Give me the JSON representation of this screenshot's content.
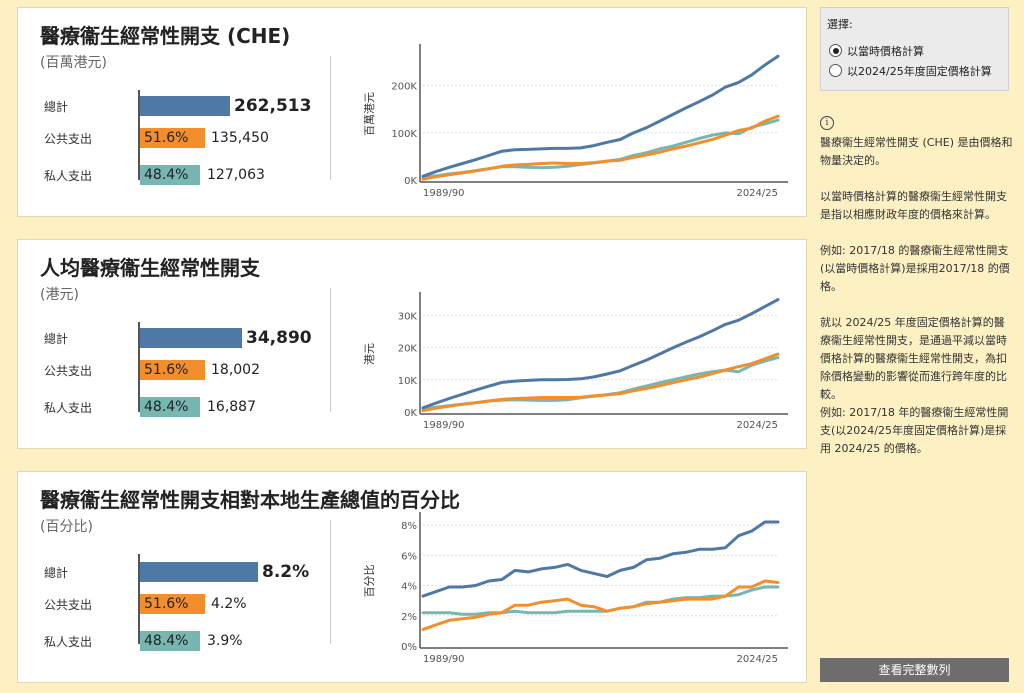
{
  "colors": {
    "total": "#4e79a7",
    "public": "#f28e2b",
    "private": "#76b7b2",
    "background": "#fdf1c4"
  },
  "selector": {
    "title": "選擇:",
    "options": [
      "以當時價格計算",
      "以2024/25年度固定價格計算"
    ],
    "selected": "以當時價格計算"
  },
  "notes": {
    "p1": "醫療衞生經常性開支 (CHE) 是由價格和物量決定的。",
    "p2": "以當時價格計算的醫療衞生經常性開支是指以相應財政年度的價格來計算。",
    "p2b": "例如: 2017/18 的醫療衞生經常性開支(以當時價格計算)是採用2017/18 的價格。",
    "p3": "就以 2024/25 年度固定價格計算的醫療衞生經常性開支，是通過平減以當時價格計算的醫療衞生經常性開支，為扣除價格變動的影響從而進行跨年度的比較。",
    "p3b": "例如: 2017/18 年的醫療衞生經常性開支(以2024/25年度固定價格計算)是採用 2024/25 的價格。"
  },
  "full_series_button": "查看完整數列",
  "bar_labels": {
    "total": "總計",
    "public": "公共支出",
    "private": "私人支出"
  },
  "panels": [
    {
      "title": "醫療衞生經常性開支 (CHE)",
      "unit": "(百萬港元)",
      "total": "262,513",
      "public_pct": "51.6%",
      "public": "135,450",
      "private_pct": "48.4%",
      "private": "127,063"
    },
    {
      "title": "人均醫療衞生經常性開支",
      "unit": "(港元)",
      "total": "34,890",
      "public_pct": "51.6%",
      "public": "18,002",
      "private_pct": "48.4%",
      "private": "16,887"
    },
    {
      "title": "醫療衞生經常性開支相對本地生產總值的百分比",
      "unit": "(百分比)",
      "total": "8.2%",
      "public_pct": "51.6%",
      "public": "4.2%",
      "private_pct": "48.4%",
      "private": "3.9%"
    }
  ],
  "chart_data": [
    {
      "type": "line",
      "ylabel": "百萬港元",
      "x_first": "1989/90",
      "x_last": "2024/25",
      "ylim": [
        0,
        280000
      ],
      "yticks": [
        0,
        100000,
        200000
      ],
      "ytick_labels": [
        "0K",
        "100K",
        "200K"
      ],
      "series": [
        {
          "key": "total",
          "values": [
            8000,
            18000,
            27000,
            35000,
            43000,
            52000,
            61000,
            64000,
            65000,
            66000,
            67000,
            67000,
            68000,
            73000,
            80000,
            86000,
            100000,
            111000,
            125000,
            139000,
            153000,
            166000,
            180000,
            197000,
            207000,
            223000,
            244000,
            262513
          ]
        },
        {
          "key": "public",
          "values": [
            2000,
            7000,
            11000,
            15000,
            19000,
            24000,
            29000,
            32000,
            33000,
            35000,
            36000,
            35000,
            35000,
            37000,
            40000,
            42000,
            48000,
            53000,
            59000,
            66000,
            72000,
            79000,
            86000,
            95000,
            105000,
            110000,
            125000,
            135450
          ]
        },
        {
          "key": "private",
          "values": [
            6000,
            9000,
            13000,
            16000,
            20000,
            24000,
            28000,
            28000,
            27000,
            26000,
            27000,
            29000,
            33000,
            36000,
            40000,
            44000,
            52000,
            58000,
            66000,
            72000,
            80000,
            88000,
            95000,
            100000,
            98000,
            112000,
            119000,
            127063
          ]
        }
      ]
    },
    {
      "type": "line",
      "ylabel": "港元",
      "x_first": "1989/90",
      "x_last": "2024/25",
      "ylim": [
        0,
        36000
      ],
      "yticks": [
        0,
        10000,
        20000,
        30000
      ],
      "ytick_labels": [
        "0K",
        "10K",
        "20K",
        "30K"
      ],
      "series": [
        {
          "key": "total",
          "values": [
            1300,
            2800,
            4200,
            5500,
            6800,
            8000,
            9200,
            9600,
            9800,
            10000,
            10000,
            10100,
            10300,
            10900,
            11800,
            12800,
            14500,
            16100,
            18000,
            19900,
            21700,
            23300,
            25200,
            27200,
            28500,
            30500,
            32700,
            34890
          ]
        },
        {
          "key": "public",
          "values": [
            400,
            1200,
            1800,
            2400,
            2900,
            3400,
            3900,
            4200,
            4300,
            4500,
            4500,
            4500,
            4600,
            5000,
            5300,
            5700,
            6600,
            7300,
            8200,
            9100,
            10000,
            10800,
            11900,
            13000,
            14100,
            15000,
            16500,
            18002
          ]
        },
        {
          "key": "private",
          "values": [
            1000,
            1500,
            2000,
            2400,
            2900,
            3400,
            3700,
            3800,
            3700,
            3600,
            3600,
            3800,
            4400,
            4900,
            5400,
            6000,
            7100,
            8100,
            9100,
            10000,
            10900,
            11800,
            12500,
            13000,
            12500,
            14500,
            15800,
            16887
          ]
        }
      ]
    },
    {
      "type": "line",
      "ylabel": "百分比",
      "x_first": "1989/90",
      "x_last": "2024/25",
      "ylim": [
        0,
        8.6
      ],
      "yticks": [
        0,
        2,
        4,
        6,
        8
      ],
      "ytick_labels": [
        "0%",
        "2%",
        "4%",
        "6%",
        "8%"
      ],
      "series": [
        {
          "key": "total",
          "values": [
            3.3,
            3.6,
            3.9,
            3.9,
            4.0,
            4.3,
            4.4,
            5.0,
            4.9,
            5.1,
            5.2,
            5.4,
            5.0,
            4.8,
            4.6,
            5.0,
            5.2,
            5.7,
            5.8,
            6.1,
            6.2,
            6.4,
            6.4,
            6.5,
            7.3,
            7.6,
            8.2,
            8.2
          ]
        },
        {
          "key": "public",
          "values": [
            1.1,
            1.4,
            1.7,
            1.8,
            1.9,
            2.1,
            2.2,
            2.7,
            2.7,
            2.9,
            3.0,
            3.1,
            2.7,
            2.6,
            2.3,
            2.5,
            2.6,
            2.8,
            2.9,
            3.0,
            3.1,
            3.1,
            3.1,
            3.3,
            3.9,
            3.9,
            4.3,
            4.2
          ]
        },
        {
          "key": "private",
          "values": [
            2.2,
            2.2,
            2.2,
            2.1,
            2.1,
            2.2,
            2.2,
            2.3,
            2.2,
            2.2,
            2.2,
            2.3,
            2.3,
            2.3,
            2.3,
            2.5,
            2.6,
            2.9,
            2.9,
            3.1,
            3.2,
            3.2,
            3.3,
            3.3,
            3.4,
            3.7,
            3.9,
            3.9
          ]
        }
      ]
    }
  ]
}
